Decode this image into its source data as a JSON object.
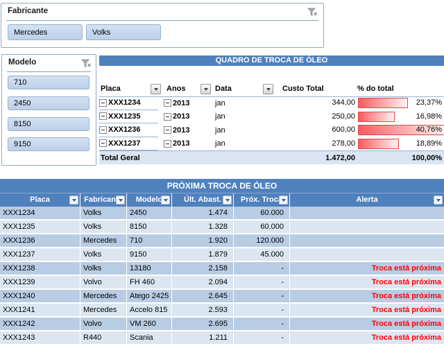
{
  "slicers": {
    "fabricante": {
      "title": "Fabricante",
      "items": [
        "Mercedes",
        "Volks"
      ]
    },
    "modelo": {
      "title": "Modelo",
      "items": [
        "710",
        "2450",
        "8150",
        "9150"
      ]
    }
  },
  "pivot": {
    "title": "QUADRO DE TROCA DE ÓLEO",
    "columns": {
      "placa": "Placa",
      "anos": "Anos",
      "data": "Data",
      "custo": "Custo Total",
      "pct": "% do total"
    },
    "rows": [
      {
        "placa": "XXX1234",
        "ano": "2013",
        "mes": "jan",
        "custo": "344,00",
        "pct": "23,37%",
        "bar_pct": 57.3
      },
      {
        "placa": "XXX1235",
        "ano": "2013",
        "mes": "jan",
        "custo": "250,00",
        "pct": "16,98%",
        "bar_pct": 41.7
      },
      {
        "placa": "XXX1236",
        "ano": "2013",
        "mes": "jan",
        "custo": "600,00",
        "pct": "40,76%",
        "bar_pct": 100
      },
      {
        "placa": "XXX1237",
        "ano": "2013",
        "mes": "jan",
        "custo": "278,00",
        "pct": "18,89%",
        "bar_pct": 46.3
      }
    ],
    "total": {
      "label": "Total Geral",
      "custo": "1.472,00",
      "pct": "100,00%"
    }
  },
  "table2": {
    "title": "PRÓXIMA TROCA DE ÓLEO",
    "columns": [
      "Placa",
      "Fabricante",
      "Modelo",
      "Últ. Abast.",
      "Próx. Troca",
      "Alerta"
    ],
    "rows": [
      {
        "placa": "XXX1234",
        "fabricante": "Volks",
        "modelo": "2450",
        "ult": "1.474",
        "prox": "60.000",
        "alerta": ""
      },
      {
        "placa": "XXX1235",
        "fabricante": "Volks",
        "modelo": "8150",
        "ult": "1.328",
        "prox": "60.000",
        "alerta": ""
      },
      {
        "placa": "XXX1236",
        "fabricante": "Mercedes",
        "modelo": "710",
        "ult": "1.920",
        "prox": "120.000",
        "alerta": ""
      },
      {
        "placa": "XXX1237",
        "fabricante": "Volks",
        "modelo": "9150",
        "ult": "1.879",
        "prox": "45.000",
        "alerta": ""
      },
      {
        "placa": "XXX1238",
        "fabricante": "Volks",
        "modelo": "13180",
        "ult": "2.158",
        "prox": "-",
        "alerta": "Troca está próxima"
      },
      {
        "placa": "XXX1239",
        "fabricante": "Volvo",
        "modelo": "FH 460",
        "ult": "2.094",
        "prox": "-",
        "alerta": "Troca está próxima"
      },
      {
        "placa": "XXX1240",
        "fabricante": "Mercedes",
        "modelo": "Atego 2425",
        "ult": "2.645",
        "prox": "-",
        "alerta": "Troca está próxima"
      },
      {
        "placa": "XXX1241",
        "fabricante": "Mercedes",
        "modelo": "Accelo 815",
        "ult": "2.593",
        "prox": "-",
        "alerta": "Troca está próxima"
      },
      {
        "placa": "XXX1242",
        "fabricante": "Volvo",
        "modelo": "VM 260",
        "ult": "2.695",
        "prox": "-",
        "alerta": "Troca está próxima"
      },
      {
        "placa": "XXX1243",
        "fabricante": "R440",
        "modelo": "Scania",
        "ult": "1.211",
        "prox": "-",
        "alerta": "Troca está próxima"
      }
    ]
  },
  "colors": {
    "accent_blue": "#4f81bd",
    "band_dark": "#b8cce4",
    "band_light": "#dce6f1",
    "alert_red": "#ff0000",
    "databar_red": "#fb5a5e"
  },
  "icons": {
    "clear_filter": "funnel-with-x",
    "dropdown": "triangle-down",
    "collapse": "minus-box"
  }
}
